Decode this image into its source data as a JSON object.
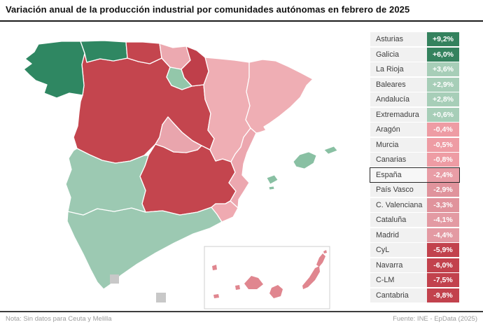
{
  "title": "Variación anual de la producción industrial por comunidades autónomas en febrero de 2025",
  "footer": {
    "note": "Nota: Sin datos para Ceuta y Melilla",
    "source": "Fuente: INE - EpData (2025)"
  },
  "legend": {
    "rows": [
      {
        "id": "asturias",
        "label": "Asturias",
        "value_display": "+9,2%",
        "value": 9.2,
        "chip_color": "#34825E",
        "highlight": false
      },
      {
        "id": "galicia",
        "label": "Galicia",
        "value_display": "+6,0%",
        "value": 6.0,
        "chip_color": "#34825E",
        "highlight": false
      },
      {
        "id": "la-rioja",
        "label": "La Rioja",
        "value_display": "+3,6%",
        "value": 3.6,
        "chip_color": "#A7CEB8",
        "highlight": false
      },
      {
        "id": "baleares",
        "label": "Baleares",
        "value_display": "+2,9%",
        "value": 2.9,
        "chip_color": "#A7CEB8",
        "highlight": false
      },
      {
        "id": "andalucia",
        "label": "Andalucía",
        "value_display": "+2,8%",
        "value": 2.8,
        "chip_color": "#A7CEB8",
        "highlight": false
      },
      {
        "id": "extremadura",
        "label": "Extremadura",
        "value_display": "+0,6%",
        "value": 0.6,
        "chip_color": "#A7CEB8",
        "highlight": false
      },
      {
        "id": "aragon",
        "label": "Aragón",
        "value_display": "-0,4%",
        "value": -0.4,
        "chip_color": "#EE9CA4",
        "highlight": false
      },
      {
        "id": "murcia",
        "label": "Murcia",
        "value_display": "-0,5%",
        "value": -0.5,
        "chip_color": "#EE9CA4",
        "highlight": false
      },
      {
        "id": "canarias",
        "label": "Canarias",
        "value_display": "-0,8%",
        "value": -0.8,
        "chip_color": "#EE9CA4",
        "highlight": false
      },
      {
        "id": "espana",
        "label": "España",
        "value_display": "-2,4%",
        "value": -2.4,
        "chip_color": "#E89DA6",
        "highlight": true
      },
      {
        "id": "pais-vasco",
        "label": "País Vasco",
        "value_display": "-2,9%",
        "value": -2.9,
        "chip_color": "#E0939C",
        "highlight": false
      },
      {
        "id": "valencia",
        "label": "C. Valenciana",
        "value_display": "-3,3%",
        "value": -3.3,
        "chip_color": "#E0939C",
        "highlight": false
      },
      {
        "id": "cataluna",
        "label": "Cataluña",
        "value_display": "-4,1%",
        "value": -4.1,
        "chip_color": "#E39AA3",
        "highlight": false
      },
      {
        "id": "madrid",
        "label": "Madrid",
        "value_display": "-4,4%",
        "value": -4.4,
        "chip_color": "#E39AA3",
        "highlight": false
      },
      {
        "id": "cyl",
        "label": "CyL",
        "value_display": "-5,9%",
        "value": -5.9,
        "chip_color": "#C2424D",
        "highlight": false
      },
      {
        "id": "navarra",
        "label": "Navarra",
        "value_display": "-6,0%",
        "value": -6.0,
        "chip_color": "#C2424D",
        "highlight": false
      },
      {
        "id": "clm",
        "label": "C-LM",
        "value_display": "-7,5%",
        "value": -7.5,
        "chip_color": "#C2424D",
        "highlight": false
      },
      {
        "id": "cantabria",
        "label": "Cantabria",
        "value_display": "-9,8%",
        "value": -9.8,
        "chip_color": "#C2424D",
        "highlight": false
      }
    ]
  },
  "map": {
    "regions": {
      "galicia": {
        "label": "Galicia",
        "color": "#2F8762"
      },
      "asturias": {
        "label": "Asturias",
        "color": "#2F8762"
      },
      "cantabria": {
        "label": "Cantabria",
        "color": "#C4454E"
      },
      "pais-vasco": {
        "label": "País Vasco",
        "color": "#ECA9B0"
      },
      "navarra": {
        "label": "Navarra",
        "color": "#BF3F4A"
      },
      "la-rioja": {
        "label": "La Rioja",
        "color": "#93C7AA"
      },
      "aragon": {
        "label": "Aragón",
        "color": "#EFAEB4"
      },
      "cataluna": {
        "label": "Cataluña",
        "color": "#EFAEB4"
      },
      "cyl": {
        "label": "Castilla y León",
        "color": "#C4454E"
      },
      "madrid": {
        "label": "Madrid",
        "color": "#E9A5AD"
      },
      "clm": {
        "label": "Castilla-La Mancha",
        "color": "#C4454E"
      },
      "valencia": {
        "label": "C. Valenciana",
        "color": "#ECA7AF"
      },
      "murcia": {
        "label": "Murcia",
        "color": "#EFAAB1"
      },
      "extremadura": {
        "label": "Extremadura",
        "color": "#9CC9B2"
      },
      "andalucia": {
        "label": "Andalucía",
        "color": "#9CC9B2"
      },
      "baleares": {
        "label": "Baleares",
        "color": "#89C0A3"
      },
      "canarias": {
        "label": "Canarias",
        "color": "#E0868F"
      },
      "ceuta": {
        "label": "Ceuta",
        "color": "#C8C8C8"
      },
      "melilla": {
        "label": "Melilla",
        "color": "#C8C8C8"
      }
    }
  },
  "chart_data": {
    "type": "choropleth_map",
    "title": "Variación anual de la producción industrial por comunidades autónomas en febrero de 2025",
    "unit": "%",
    "categories": [
      "Asturias",
      "Galicia",
      "La Rioja",
      "Baleares",
      "Andalucía",
      "Extremadura",
      "Aragón",
      "Murcia",
      "Canarias",
      "España",
      "País Vasco",
      "C. Valenciana",
      "Cataluña",
      "Madrid",
      "CyL",
      "Navarra",
      "C-LM",
      "Cantabria"
    ],
    "values": [
      9.2,
      6.0,
      3.6,
      2.9,
      2.8,
      0.6,
      -0.4,
      -0.5,
      -0.8,
      -2.4,
      -2.9,
      -3.3,
      -4.1,
      -4.4,
      -5.9,
      -6.0,
      -7.5,
      -9.8
    ],
    "national_reference": {
      "label": "España",
      "value": -2.4
    },
    "no_data": [
      "Ceuta",
      "Melilla"
    ],
    "color_encoding": "green = positive variation, pink/red = negative variation; darker shade = larger magnitude",
    "legend_position": "right",
    "source": "INE - EpData (2025)"
  }
}
